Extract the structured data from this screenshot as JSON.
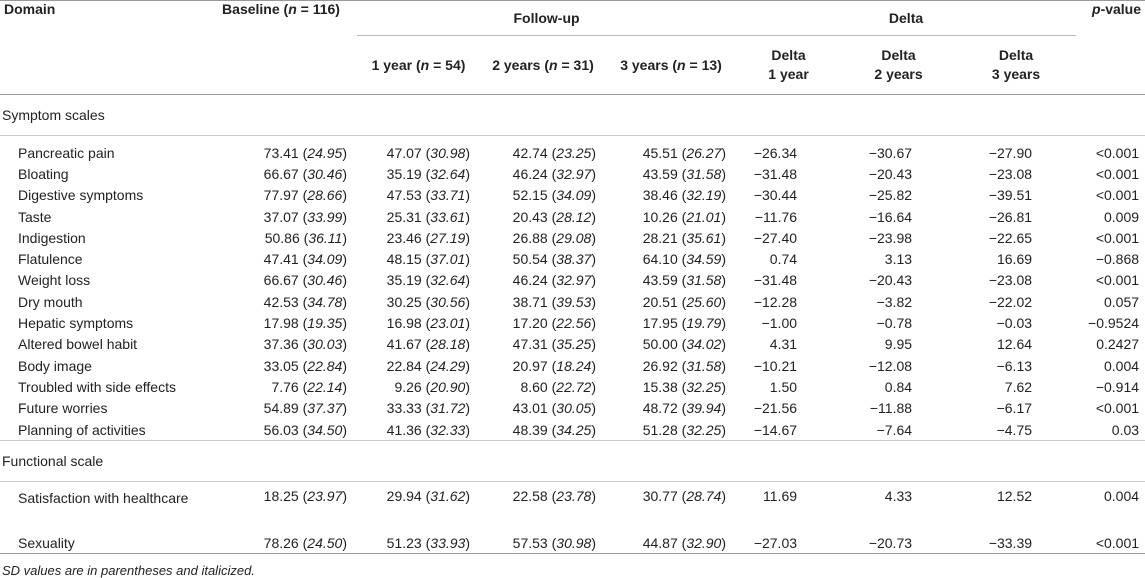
{
  "header": {
    "domain": "Domain",
    "baseline": "Baseline (",
    "baseline_n": "n",
    "baseline_rest": " = 116)",
    "followup": "Follow-up",
    "delta_group": "Delta",
    "pvalue_p": "p",
    "pvalue_rest": "-value",
    "fu_1": "1 year (",
    "fu_1_rest": " = 54)",
    "fu_2": "2 years (",
    "fu_2_rest": " = 31)",
    "fu_3": "3 years (",
    "fu_3_rest": " = 13)",
    "n": "n",
    "d1a": "Delta",
    "d1b": "1 year",
    "d2a": "Delta",
    "d2b": "2 years",
    "d3a": "Delta",
    "d3b": "3 years"
  },
  "symptom_section": "Symptom scales",
  "symptom_rows": [
    {
      "label": "Pancreatic pain",
      "b": "73.41",
      "bsd": "24.95",
      "f1": "47.07",
      "f1sd": "30.98",
      "f2": "42.74",
      "f2sd": "23.25",
      "f3": "45.51",
      "f3sd": "26.27",
      "d1": "−26.34",
      "d2": "−30.67",
      "d3": "−27.90",
      "p": "<0.001"
    },
    {
      "label": "Bloating",
      "b": "66.67",
      "bsd": "30.46",
      "f1": "35.19",
      "f1sd": "32.64",
      "f2": "46.24",
      "f2sd": "32.97",
      "f3": "43.59",
      "f3sd": "31.58",
      "d1": "−31.48",
      "d2": "−20.43",
      "d3": "−23.08",
      "p": "<0.001"
    },
    {
      "label": "Digestive symptoms",
      "b": "77.97",
      "bsd": "28.66",
      "f1": "47.53",
      "f1sd": "33.71",
      "f2": "52.15",
      "f2sd": "34.09",
      "f3": "38.46",
      "f3sd": "32.19",
      "d1": "−30.44",
      "d2": "−25.82",
      "d3": "−39.51",
      "p": "<0.001"
    },
    {
      "label": "Taste",
      "b": "37.07",
      "bsd": "33.99",
      "f1": "25.31",
      "f1sd": "33.61",
      "f2": "20.43",
      "f2sd": "28.12",
      "f3": "10.26",
      "f3sd": "21.01",
      "d1": "−11.76",
      "d2": "−16.64",
      "d3": "−26.81",
      "p": "0.009"
    },
    {
      "label": "Indigestion",
      "b": "50.86",
      "bsd": "36.11",
      "f1": "23.46",
      "f1sd": "27.19",
      "f2": "26.88",
      "f2sd": "29.08",
      "f3": "28.21",
      "f3sd": "35.61",
      "d1": "−27.40",
      "d2": "−23.98",
      "d3": "−22.65",
      "p": "<0.001"
    },
    {
      "label": "Flatulence",
      "b": "47.41",
      "bsd": "34.09",
      "f1": "48.15",
      "f1sd": "37.01",
      "f2": "50.54",
      "f2sd": "38.37",
      "f3": "64.10",
      "f3sd": "34.59",
      "d1": "0.74",
      "d2": "3.13",
      "d3": "16.69",
      "p": "−0.868"
    },
    {
      "label": "Weight loss",
      "b": "66.67",
      "bsd": "30.46",
      "f1": "35.19",
      "f1sd": "32.64",
      "f2": "46.24",
      "f2sd": "32.97",
      "f3": "43.59",
      "f3sd": "31.58",
      "d1": "−31.48",
      "d2": "−20.43",
      "d3": "−23.08",
      "p": "<0.001"
    },
    {
      "label": "Dry mouth",
      "b": "42.53",
      "bsd": "34.78",
      "f1": "30.25",
      "f1sd": "30.56",
      "f2": "38.71",
      "f2sd": "39.53",
      "f3": "20.51",
      "f3sd": "25.60",
      "d1": "−12.28",
      "d2": "−3.82",
      "d3": "−22.02",
      "p": "0.057"
    },
    {
      "label": "Hepatic symptoms",
      "b": "17.98",
      "bsd": "19.35",
      "f1": "16.98",
      "f1sd": "23.01",
      "f2": "17.20",
      "f2sd": "22.56",
      "f3": "17.95",
      "f3sd": "19.79",
      "d1": "−1.00",
      "d2": "−0.78",
      "d3": "−0.03",
      "p": "−0.9524"
    },
    {
      "label": "Altered bowel habit",
      "b": "37.36",
      "bsd": "30.03",
      "f1": "41.67",
      "f1sd": "28.18",
      "f2": "47.31",
      "f2sd": "35.25",
      "f3": "50.00",
      "f3sd": "34.02",
      "d1": "4.31",
      "d2": "9.95",
      "d3": "12.64",
      "p": "0.2427"
    },
    {
      "label": "Body image",
      "b": "33.05",
      "bsd": "22.84",
      "f1": "22.84",
      "f1sd": "24.29",
      "f2": "20.97",
      "f2sd": "18.24",
      "f3": "26.92",
      "f3sd": "31.58",
      "d1": "−10.21",
      "d2": "−12.08",
      "d3": "−6.13",
      "p": "0.004"
    },
    {
      "label": "Troubled with side effects",
      "b": "7.76",
      "bsd": "22.14",
      "f1": "9.26",
      "f1sd": "20.90",
      "f2": "8.60",
      "f2sd": "22.72",
      "f3": "15.38",
      "f3sd": "32.25",
      "d1": "1.50",
      "d2": "0.84",
      "d3": "7.62",
      "p": "−0.914"
    },
    {
      "label": "Future worries",
      "b": "54.89",
      "bsd": "37.37",
      "f1": "33.33",
      "f1sd": "31.72",
      "f2": "43.01",
      "f2sd": "30.05",
      "f3": "48.72",
      "f3sd": "39.94",
      "d1": "−21.56",
      "d2": "−11.88",
      "d3": "−6.17",
      "p": "<0.001"
    },
    {
      "label": "Planning of activities",
      "b": "56.03",
      "bsd": "34.50",
      "f1": "41.36",
      "f1sd": "32.33",
      "f2": "48.39",
      "f2sd": "34.25",
      "f3": "51.28",
      "f3sd": "32.25",
      "d1": "−14.67",
      "d2": "−7.64",
      "d3": "−4.75",
      "p": "0.03"
    }
  ],
  "functional_section": "Functional scale",
  "functional_rows": [
    {
      "label": "Satisfaction with healthcare",
      "b": "18.25",
      "bsd": "23.97",
      "f1": "29.94",
      "f1sd": "31.62",
      "f2": "22.58",
      "f2sd": "23.78",
      "f3": "30.77",
      "f3sd": "28.74",
      "d1": "11.69",
      "d2": "4.33",
      "d3": "12.52",
      "p": "0.004"
    },
    {
      "label": "Sexuality",
      "b": "78.26",
      "bsd": "24.50",
      "f1": "51.23",
      "f1sd": "33.93",
      "f2": "57.53",
      "f2sd": "30.98",
      "f3": "44.87",
      "f3sd": "32.90",
      "d1": "−27.03",
      "d2": "−20.73",
      "d3": "−33.39",
      "p": "<0.001"
    }
  ],
  "footnote": "SD values are in parentheses and italicized."
}
